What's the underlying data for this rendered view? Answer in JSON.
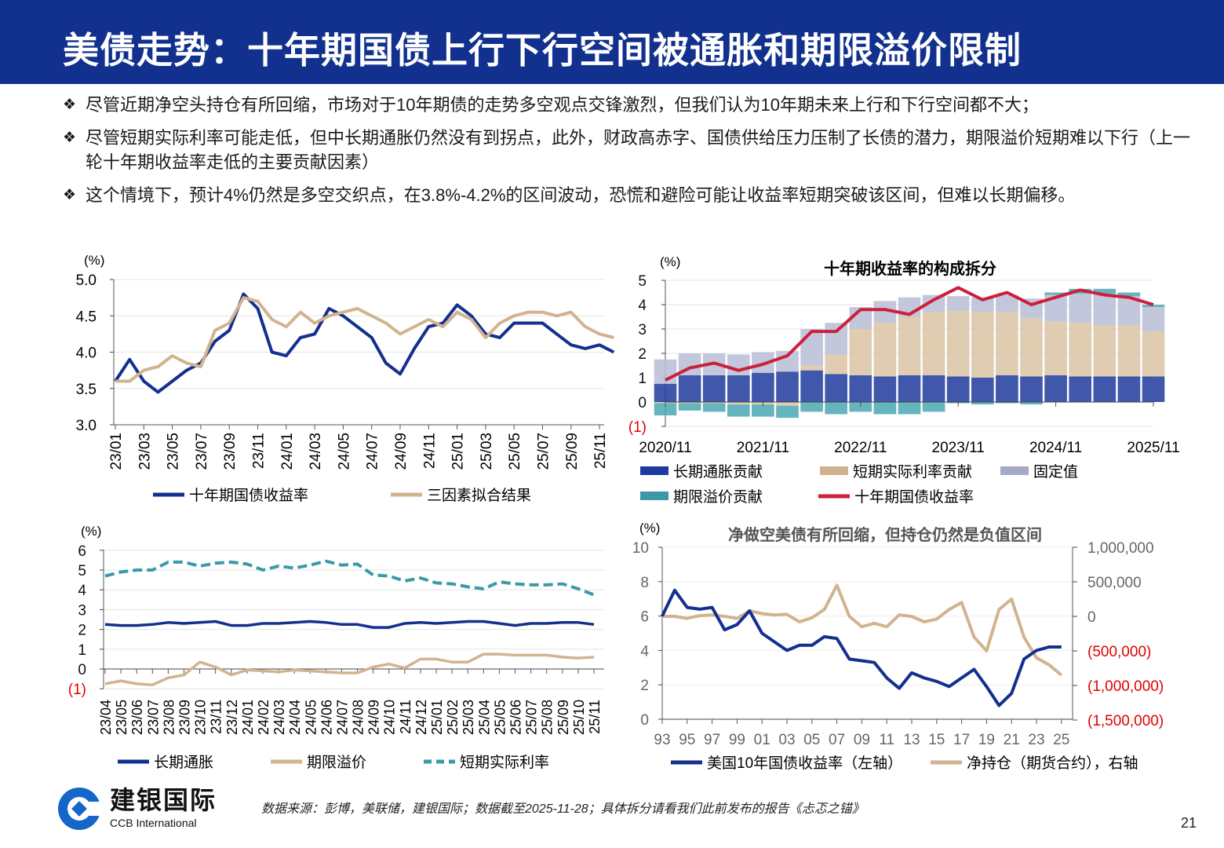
{
  "title": "美债走势：十年期国债上行下行空间被通胀和期限溢价限制",
  "bullets": [
    "尽管近期净空头持仓有所回缩，市场对于10年期债的走势多空观点交锋激烈，但我们认为10年期未来上行和下行空间都不大；",
    "尽管短期实际利率可能走低，但中长期通胀仍然没有到拐点，此外，财政高赤字、国债供给压力压制了长债的潜力，期限溢价短期难以下行（上一轮十年期收益率走低的主要贡献因素）",
    "这个情境下，预计4%仍然是多空交织点，在3.8%-4.2%的区间波动，恐慌和避险可能让收益率短期突破该区间，但难以长期偏移。"
  ],
  "bullet_icon": "diamond-cluster-icon",
  "colors": {
    "title_bg": "#12318e",
    "navy": "#13308f",
    "tan": "#d1b48f",
    "teal": "#3a9aa8",
    "red": "#cc1f3c",
    "grey": "#a9afcb",
    "negative_label": "#e00000"
  },
  "chart_data": [
    {
      "type": "line",
      "unit": "(%)",
      "ylim": [
        3.0,
        5.0
      ],
      "yticks": [
        "3.0",
        "3.5",
        "4.0",
        "4.5",
        "5.0"
      ],
      "xticks": [
        "23/01",
        "23/03",
        "23/05",
        "23/07",
        "23/09",
        "23/11",
        "24/01",
        "24/03",
        "24/05",
        "24/07",
        "24/09",
        "24/11",
        "25/01",
        "25/03",
        "25/05",
        "25/07",
        "25/09",
        "25/11"
      ],
      "x": [
        "23/01",
        "23/02",
        "23/03",
        "23/04",
        "23/05",
        "23/06",
        "23/07",
        "23/08",
        "23/09",
        "23/10",
        "23/11",
        "23/12",
        "24/01",
        "24/02",
        "24/03",
        "24/04",
        "24/05",
        "24/06",
        "24/07",
        "24/08",
        "24/09",
        "24/10",
        "24/11",
        "24/12",
        "25/01",
        "25/02",
        "25/03",
        "25/04",
        "25/05",
        "25/06",
        "25/07",
        "25/08",
        "25/09",
        "25/10",
        "25/11",
        "25/12"
      ],
      "series": [
        {
          "name": "十年期国债收益率",
          "color": "#13308f",
          "values": [
            3.6,
            3.9,
            3.6,
            3.45,
            3.6,
            3.75,
            3.85,
            4.15,
            4.3,
            4.8,
            4.6,
            4.0,
            3.95,
            4.2,
            4.25,
            4.6,
            4.5,
            4.35,
            4.2,
            3.85,
            3.7,
            4.05,
            4.35,
            4.4,
            4.65,
            4.5,
            4.25,
            4.2,
            4.4,
            4.4,
            4.4,
            4.25,
            4.1,
            4.05,
            4.1,
            4.0
          ]
        },
        {
          "name": "三因素拟合结果",
          "color": "#d1b48f",
          "values": [
            3.6,
            3.6,
            3.75,
            3.8,
            3.95,
            3.85,
            3.8,
            4.3,
            4.4,
            4.75,
            4.7,
            4.45,
            4.35,
            4.55,
            4.4,
            4.5,
            4.55,
            4.6,
            4.5,
            4.4,
            4.25,
            4.35,
            4.45,
            4.35,
            4.55,
            4.45,
            4.2,
            4.4,
            4.5,
            4.55,
            4.55,
            4.5,
            4.55,
            4.35,
            4.25,
            4.2
          ]
        }
      ]
    },
    {
      "type": "bar",
      "stacked": true,
      "title": "十年期收益率的构成拆分",
      "unit": "(%)",
      "ylim": [
        -1,
        5
      ],
      "yticks": [
        "(1)",
        "0",
        "1",
        "2",
        "3",
        "4",
        "5"
      ],
      "xticks": [
        "2020/11",
        "2021/11",
        "2022/11",
        "2023/11",
        "2024/11",
        "2025/11"
      ],
      "x": [
        "2020/11",
        "2021/02",
        "2021/05",
        "2021/08",
        "2021/11",
        "2022/02",
        "2022/05",
        "2022/08",
        "2022/11",
        "2023/02",
        "2023/05",
        "2023/08",
        "2023/11",
        "2024/02",
        "2024/05",
        "2024/08",
        "2024/11",
        "2025/02",
        "2025/05",
        "2025/08",
        "2025/11"
      ],
      "series": [
        {
          "name": "长期通胀贡献",
          "color": "#1f3a9e",
          "values": [
            0.75,
            1.1,
            1.1,
            1.1,
            1.2,
            1.25,
            1.3,
            1.15,
            1.1,
            1.05,
            1.1,
            1.1,
            1.05,
            1.0,
            1.1,
            1.05,
            1.1,
            1.05,
            1.05,
            1.05,
            1.05
          ]
        },
        {
          "name": "短期实际利率贡献",
          "color": "#d9c3a3",
          "values": [
            -0.05,
            -0.05,
            -0.05,
            -0.1,
            -0.1,
            -0.15,
            0.2,
            0.8,
            1.9,
            2.2,
            2.4,
            2.6,
            2.7,
            2.7,
            2.6,
            2.4,
            2.2,
            2.2,
            2.1,
            2.1,
            1.85
          ]
        },
        {
          "name": "固定值",
          "color": "#b8bdd6",
          "values": [
            1.0,
            0.9,
            0.9,
            0.85,
            0.85,
            0.85,
            1.5,
            1.3,
            0.9,
            0.9,
            0.8,
            0.7,
            0.6,
            0.6,
            0.7,
            0.8,
            1.1,
            1.2,
            1.3,
            1.2,
            1.0
          ]
        },
        {
          "name": "期限溢价贡献",
          "color": "#4aa7b3",
          "values": [
            -0.5,
            -0.3,
            -0.35,
            -0.5,
            -0.5,
            -0.5,
            -0.4,
            -0.5,
            -0.4,
            -0.5,
            -0.5,
            -0.4,
            -0.05,
            -0.1,
            -0.05,
            -0.1,
            0.1,
            0.2,
            0.2,
            0.15,
            0.1
          ]
        },
        {
          "name": "十年期国债收益率",
          "type": "line",
          "color": "#cc1f3c",
          "values": [
            0.9,
            1.4,
            1.6,
            1.3,
            1.55,
            1.9,
            2.9,
            2.9,
            3.8,
            3.8,
            3.6,
            4.2,
            4.7,
            4.2,
            4.5,
            4.0,
            4.3,
            4.6,
            4.4,
            4.3,
            4.0
          ]
        }
      ]
    },
    {
      "type": "line",
      "unit": "(%)",
      "ylim": [
        -1,
        6
      ],
      "yticks": [
        "(1)",
        "0",
        "1",
        "2",
        "3",
        "4",
        "5",
        "6"
      ],
      "xticks": [
        "23/04",
        "23/05",
        "23/06",
        "23/07",
        "23/08",
        "23/09",
        "23/10",
        "23/11",
        "23/12",
        "24/01",
        "24/02",
        "24/03",
        "24/04",
        "24/05",
        "24/06",
        "24/07",
        "24/08",
        "24/09",
        "24/10",
        "24/11",
        "24/12",
        "25/01",
        "25/02",
        "25/03",
        "25/04",
        "25/05",
        "25/06",
        "25/07",
        "25/08",
        "25/09",
        "25/10",
        "25/11"
      ],
      "series": [
        {
          "name": "长期通胀",
          "color": "#13308f",
          "dash": false,
          "values": [
            2.25,
            2.2,
            2.2,
            2.25,
            2.35,
            2.3,
            2.35,
            2.4,
            2.2,
            2.2,
            2.3,
            2.3,
            2.35,
            2.4,
            2.35,
            2.25,
            2.25,
            2.1,
            2.1,
            2.3,
            2.35,
            2.3,
            2.35,
            2.4,
            2.4,
            2.3,
            2.2,
            2.3,
            2.3,
            2.35,
            2.35,
            2.25
          ]
        },
        {
          "name": "期限溢价",
          "color": "#d1b48f",
          "dash": false,
          "values": [
            -0.75,
            -0.6,
            -0.75,
            -0.8,
            -0.45,
            -0.3,
            0.35,
            0.1,
            -0.3,
            -0.05,
            -0.1,
            -0.15,
            -0.05,
            -0.1,
            -0.15,
            -0.2,
            -0.2,
            0.1,
            0.25,
            0.05,
            0.5,
            0.5,
            0.35,
            0.35,
            0.75,
            0.75,
            0.7,
            0.7,
            0.7,
            0.6,
            0.55,
            0.6
          ]
        },
        {
          "name": "短期实际利率",
          "color": "#3a9aa8",
          "dash": true,
          "values": [
            4.7,
            4.9,
            5.0,
            5.0,
            5.4,
            5.4,
            5.2,
            5.35,
            5.4,
            5.3,
            5.0,
            5.2,
            5.1,
            5.25,
            5.45,
            5.25,
            5.3,
            4.75,
            4.7,
            4.45,
            4.6,
            4.35,
            4.3,
            4.15,
            4.05,
            4.4,
            4.3,
            4.25,
            4.25,
            4.3,
            4.05,
            3.75
          ]
        }
      ]
    },
    {
      "type": "line",
      "title": "净做空美债有所回缩，但持仓仍然是负值区间",
      "unit": "(%)",
      "ylim": [
        0,
        10
      ],
      "y2lim": [
        -1500000,
        1000000
      ],
      "yticks": [
        "0",
        "2",
        "4",
        "6",
        "8",
        "10"
      ],
      "y2ticks": [
        "(1,500,000)",
        "(1,000,000)",
        "(500,000)",
        "0",
        "500,000",
        "1,000,000"
      ],
      "xticks": [
        "93",
        "95",
        "97",
        "99",
        "01",
        "03",
        "05",
        "07",
        "09",
        "11",
        "13",
        "15",
        "17",
        "19",
        "21",
        "23",
        "25"
      ],
      "x": [
        1993,
        1994,
        1995,
        1996,
        1997,
        1998,
        1999,
        2000,
        2001,
        2002,
        2003,
        2004,
        2005,
        2006,
        2007,
        2008,
        2009,
        2010,
        2011,
        2012,
        2013,
        2014,
        2015,
        2016,
        2017,
        2018,
        2019,
        2020,
        2021,
        2022,
        2023,
        2024,
        2025
      ],
      "series": [
        {
          "name": "美国10年国债收益率（左轴）",
          "axis": "left",
          "color": "#13308f",
          "values": [
            6.0,
            7.5,
            6.5,
            6.4,
            6.5,
            5.2,
            5.5,
            6.3,
            5.0,
            4.5,
            4.0,
            4.3,
            4.3,
            4.8,
            4.7,
            3.5,
            3.4,
            3.3,
            2.4,
            1.8,
            2.7,
            2.4,
            2.2,
            1.9,
            2.4,
            2.9,
            1.9,
            0.8,
            1.5,
            3.5,
            4.0,
            4.2,
            4.2
          ]
        },
        {
          "name": "净持仓（期货合约），右轴",
          "axis": "right",
          "color": "#d1b48f",
          "values": [
            0,
            0,
            -30000,
            10000,
            20000,
            0,
            -30000,
            80000,
            40000,
            20000,
            30000,
            -80000,
            -20000,
            100000,
            450000,
            0,
            -150000,
            -100000,
            -150000,
            20000,
            0,
            -80000,
            -40000,
            100000,
            200000,
            -300000,
            -500000,
            100000,
            250000,
            -300000,
            -600000,
            -700000,
            -850000
          ]
        }
      ]
    }
  ],
  "footer": {
    "logo_cn": "建银国际",
    "logo_en": "CCB International",
    "source": "数据来源：彭博，美联储，建银国际；数据截至2025-11-28；具体拆分请看我们此前发布的报告《忐忑之锚》",
    "page": "21"
  }
}
